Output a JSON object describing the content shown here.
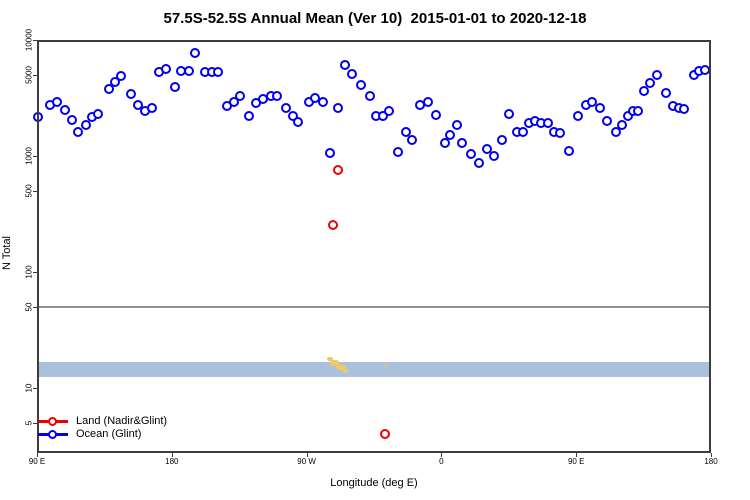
{
  "chart_data": {
    "type": "scatter",
    "title": "57.5S-52.5S Annual Mean (Ver 10)  2015-01-01 to 2020-12-18",
    "xlabel": "Longitude (deg E)",
    "ylabel": "N Total",
    "x_axis": {
      "note": "position in degrees east of left edge; left edge = 90E, wraps eastward 450 deg",
      "range": [
        0,
        450
      ],
      "ticks": [
        {
          "pos": 0,
          "label": "90 E"
        },
        {
          "pos": 90,
          "label": "180"
        },
        {
          "pos": 180,
          "label": "90 W"
        },
        {
          "pos": 270,
          "label": "0"
        },
        {
          "pos": 360,
          "label": "90 E"
        },
        {
          "pos": 450,
          "label": "180"
        }
      ]
    },
    "y_axis": {
      "scale": "log10",
      "top_value": 10000,
      "bottom_value": 2.75,
      "ticks": [
        5,
        10,
        50,
        100,
        500,
        1000,
        5000,
        10000
      ]
    },
    "reference_line": {
      "value": 50,
      "color": "#8f8f8f"
    },
    "latitude_band": {
      "top_value": 16.8,
      "bottom_value": 12.4,
      "color": "#a9c1dd",
      "land_color": "#f0c964",
      "land_patches": [
        {
          "lon0": 193.5,
          "lon1": 197.5,
          "v0": 17.0,
          "v1": 18.4
        },
        {
          "lon0": 195.5,
          "lon1": 201.5,
          "v0": 15.6,
          "v1": 17.4
        },
        {
          "lon0": 199.5,
          "lon1": 206.5,
          "v0": 14.3,
          "v1": 15.9
        },
        {
          "lon0": 204.0,
          "lon1": 207.5,
          "v0": 13.6,
          "v1": 14.5
        },
        {
          "lon0": 232.3,
          "lon1": 233.6,
          "v0": 14.9,
          "v1": 15.7
        }
      ]
    },
    "series": [
      {
        "name": "Land (Nadir&Glint)",
        "color": "#ee0000",
        "points": [
          [
            198.0,
            254
          ],
          [
            201.3,
            745
          ],
          [
            232.7,
            4
          ]
        ]
      },
      {
        "name": "Ocean (Glint)",
        "color": "#0000ee",
        "points": [
          [
            1.3,
            2130
          ],
          [
            8.7,
            2700
          ],
          [
            14,
            2920
          ],
          [
            19.3,
            2490
          ],
          [
            24,
            2040
          ],
          [
            28,
            1610
          ],
          [
            33.3,
            1820
          ],
          [
            37.3,
            2130
          ],
          [
            41.3,
            2300
          ],
          [
            48.7,
            3710
          ],
          [
            52.7,
            4260
          ],
          [
            56.7,
            4800
          ],
          [
            63.3,
            3420
          ],
          [
            68,
            2700
          ],
          [
            72.7,
            2440
          ],
          [
            77.3,
            2590
          ],
          [
            82,
            5200
          ],
          [
            86.7,
            5620
          ],
          [
            92.7,
            3930
          ],
          [
            96.7,
            5300
          ],
          [
            102,
            5400
          ],
          [
            106,
            7600
          ],
          [
            112.7,
            5200
          ],
          [
            117.3,
            5200
          ],
          [
            121.3,
            5200
          ],
          [
            127.3,
            2650
          ],
          [
            132,
            2920
          ],
          [
            136,
            3290
          ],
          [
            142,
            2170
          ],
          [
            146.7,
            2810
          ],
          [
            151.3,
            3040
          ],
          [
            156.7,
            3230
          ],
          [
            160.7,
            3230
          ],
          [
            166.7,
            2590
          ],
          [
            171.3,
            2210
          ],
          [
            174.7,
            1960
          ],
          [
            182,
            2920
          ],
          [
            186,
            3160
          ],
          [
            191.3,
            2920
          ],
          [
            196,
            1060
          ],
          [
            201.3,
            2590
          ],
          [
            206,
            5970
          ],
          [
            210.7,
            5090
          ],
          [
            216.7,
            4090
          ],
          [
            222.7,
            3290
          ],
          [
            226.7,
            2210
          ],
          [
            231.3,
            2170
          ],
          [
            235.3,
            2400
          ],
          [
            241.3,
            1080
          ],
          [
            246.7,
            1610
          ],
          [
            250.7,
            1370
          ],
          [
            256,
            2750
          ],
          [
            261.3,
            2870
          ],
          [
            266.7,
            2250
          ],
          [
            272.7,
            1290
          ],
          [
            276,
            1490
          ],
          [
            280.7,
            1820
          ],
          [
            284,
            1270
          ],
          [
            290,
            1040
          ],
          [
            295.3,
            870
          ],
          [
            300.7,
            1130
          ],
          [
            305.3,
            1000
          ],
          [
            310.7,
            1370
          ],
          [
            315.3,
            2300
          ],
          [
            320.7,
            1610
          ],
          [
            324.7,
            1580
          ],
          [
            328.7,
            1920
          ],
          [
            332.7,
            2000
          ],
          [
            336.7,
            1890
          ],
          [
            341.3,
            1920
          ],
          [
            345.3,
            1610
          ],
          [
            349.3,
            1550
          ],
          [
            355.3,
            1100
          ],
          [
            361.3,
            2170
          ],
          [
            366.7,
            2700
          ],
          [
            370.7,
            2920
          ],
          [
            376,
            2590
          ],
          [
            380.7,
            2000
          ],
          [
            386.7,
            1580
          ],
          [
            390.7,
            1850
          ],
          [
            394.7,
            2210
          ],
          [
            398,
            2400
          ],
          [
            401.3,
            2440
          ],
          [
            405.3,
            3630
          ],
          [
            409.3,
            4180
          ],
          [
            414,
            4900
          ],
          [
            420,
            3490
          ],
          [
            424.7,
            2650
          ],
          [
            428.7,
            2590
          ],
          [
            432,
            2520
          ],
          [
            438.7,
            4990
          ],
          [
            442,
            5400
          ],
          [
            446,
            5510
          ]
        ]
      }
    ],
    "legend": {
      "items": [
        "Land (Nadir&Glint)",
        "Ocean (Glint)"
      ]
    },
    "axis_color": "#3c3c3c"
  }
}
